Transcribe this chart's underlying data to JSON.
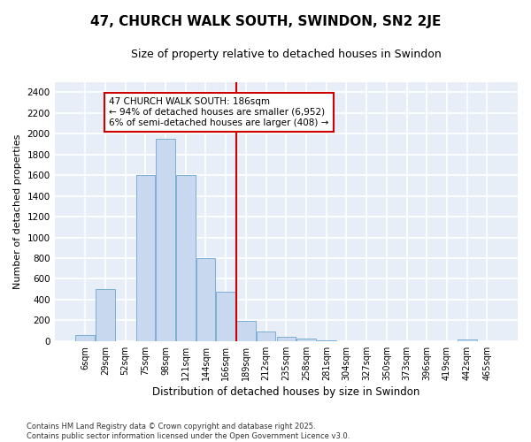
{
  "title": "47, CHURCH WALK SOUTH, SWINDON, SN2 2JE",
  "subtitle": "Size of property relative to detached houses in Swindon",
  "xlabel": "Distribution of detached houses by size in Swindon",
  "ylabel": "Number of detached properties",
  "categories": [
    "6sqm",
    "29sqm",
    "52sqm",
    "75sqm",
    "98sqm",
    "121sqm",
    "144sqm",
    "166sqm",
    "189sqm",
    "212sqm",
    "235sqm",
    "258sqm",
    "281sqm",
    "304sqm",
    "327sqm",
    "350sqm",
    "373sqm",
    "396sqm",
    "419sqm",
    "442sqm",
    "465sqm"
  ],
  "values": [
    55,
    500,
    0,
    1600,
    1950,
    1600,
    800,
    480,
    195,
    90,
    40,
    20,
    10,
    0,
    0,
    0,
    0,
    0,
    0,
    15,
    0
  ],
  "bar_color": "#c8d8ee",
  "bar_edge_color": "#7bafd4",
  "vline_color": "#cc0000",
  "annotation_text": "47 CHURCH WALK SOUTH: 186sqm\n← 94% of detached houses are smaller (6,952)\n6% of semi-detached houses are larger (408) →",
  "annotation_box_color": "white",
  "annotation_box_edge_color": "#cc0000",
  "ylim": [
    0,
    2500
  ],
  "yticks": [
    0,
    200,
    400,
    600,
    800,
    1000,
    1200,
    1400,
    1600,
    1800,
    2000,
    2200,
    2400
  ],
  "background_color": "#ffffff",
  "plot_bg_color": "#e8eef8",
  "grid_color": "#ffffff",
  "title_fontsize": 11,
  "subtitle_fontsize": 9,
  "footnote": "Contains HM Land Registry data © Crown copyright and database right 2025.\nContains public sector information licensed under the Open Government Licence v3.0."
}
